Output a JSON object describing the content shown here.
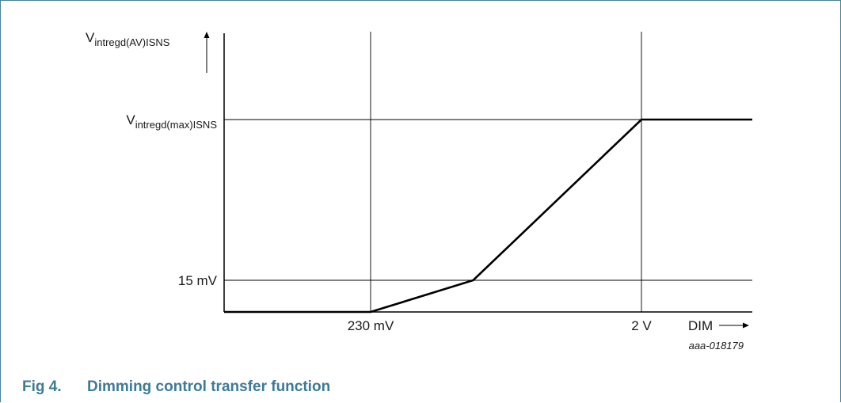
{
  "figure": {
    "number": "Fig 4.",
    "caption": "Dimming control transfer function",
    "reference": "aaa-018179"
  },
  "chart_data": {
    "type": "line",
    "title": "",
    "xlabel": "DIM",
    "ylabel": {
      "main": "V",
      "sub": "intregd(AV)ISNS"
    },
    "x_ticks": [
      {
        "label": "230 mV",
        "value": 0.23
      },
      {
        "label": "2 V",
        "value": 2
      }
    ],
    "y_ticks": [
      {
        "label": "15 mV",
        "value": 0.015
      },
      {
        "label": "V",
        "sub": "intregd(max)ISNS",
        "value": 0.1
      }
    ],
    "series": [
      {
        "x": [
          0,
          0.23,
          0.9,
          2,
          2.8
        ],
        "y": [
          0,
          0,
          0.015,
          0.1,
          0.1
        ]
      }
    ],
    "x_range": [
      0,
      2.8
    ],
    "y_range": [
      0,
      0.13
    ],
    "reference_lines": true,
    "grid": false,
    "legend": "none"
  }
}
